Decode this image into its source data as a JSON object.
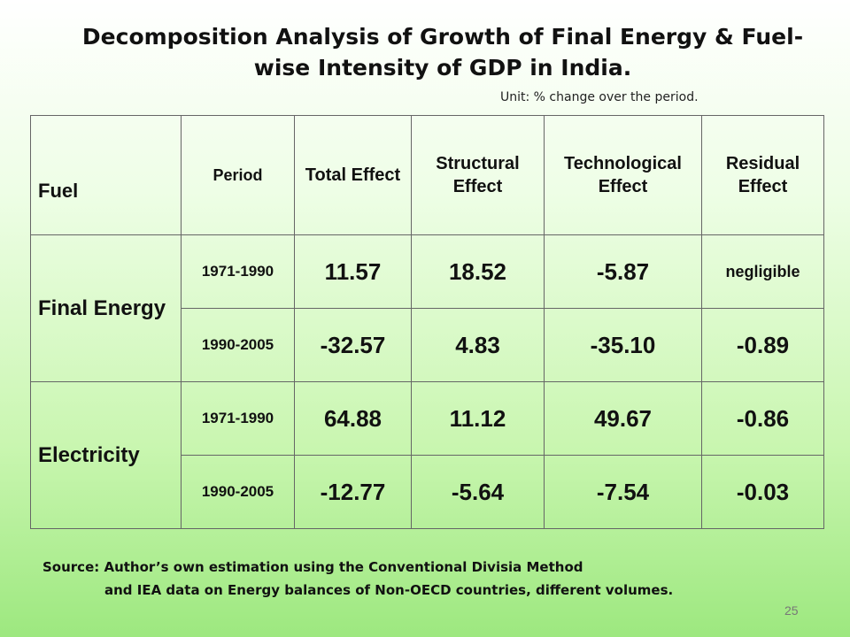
{
  "title": {
    "line1": "Decomposition Analysis of Growth of Final Energy & Fuel-",
    "line2": "wise Intensity of GDP in India."
  },
  "unit": "Unit: % change over the period.",
  "table": {
    "headers": {
      "fuel": "Fuel",
      "period": "Period",
      "total_effect": "Total Effect",
      "structural_effect": "Structural Effect",
      "technological_effect": "Technological Effect",
      "residual_effect": "Residual Effect"
    },
    "groups": [
      {
        "fuel": "Final Energy",
        "rows": [
          {
            "period": "1971-1990",
            "total": "11.57",
            "structural": "18.52",
            "technological": "-5.87",
            "residual": "negligible"
          },
          {
            "period": "1990-2005",
            "total": "-32.57",
            "structural": "4.83",
            "technological": "-35.10",
            "residual": "-0.89"
          }
        ]
      },
      {
        "fuel": "Electricity",
        "rows": [
          {
            "period": "1971-1990",
            "total": "64.88",
            "structural": "11.12",
            "technological": "49.67",
            "residual": "-0.86"
          },
          {
            "period": "1990-2005",
            "total": "-12.77",
            "structural": "-5.64",
            "technological": "-7.54",
            "residual": "-0.03"
          }
        ]
      }
    ]
  },
  "source": {
    "line1": "Source: Author’s own estimation using the Conventional Divisia Method",
    "line2": "and IEA data on Energy balances of Non-OECD countries, different volumes."
  },
  "page_number": "25",
  "colors": {
    "electricity_text": "#1c9aa1",
    "background_bottom": "#9de87f"
  }
}
